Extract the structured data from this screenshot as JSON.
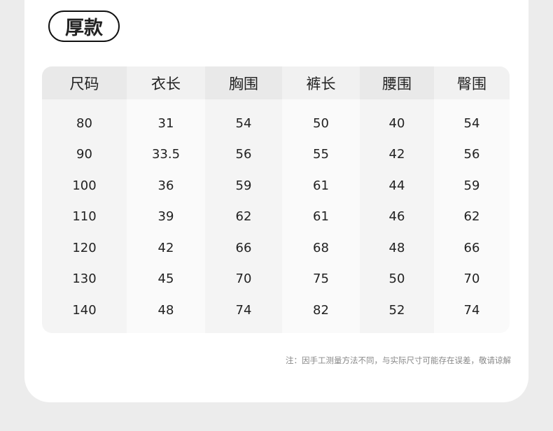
{
  "title": "厚款",
  "table": {
    "headers": [
      "尺码",
      "衣长",
      "胸围",
      "裤长",
      "腰围",
      "臀围"
    ],
    "columns": [
      [
        "80",
        "90",
        "100",
        "110",
        "120",
        "130",
        "140"
      ],
      [
        "31",
        "33.5",
        "36",
        "39",
        "42",
        "45",
        "48"
      ],
      [
        "54",
        "56",
        "59",
        "62",
        "66",
        "70",
        "74"
      ],
      [
        "50",
        "55",
        "61",
        "61",
        "68",
        "75",
        "82"
      ],
      [
        "40",
        "42",
        "44",
        "46",
        "48",
        "50",
        "52"
      ],
      [
        "54",
        "56",
        "59",
        "62",
        "66",
        "70",
        "74"
      ]
    ]
  },
  "note": "注：因手工测量方法不同，与实际尺寸可能存在误差，敬请谅解"
}
